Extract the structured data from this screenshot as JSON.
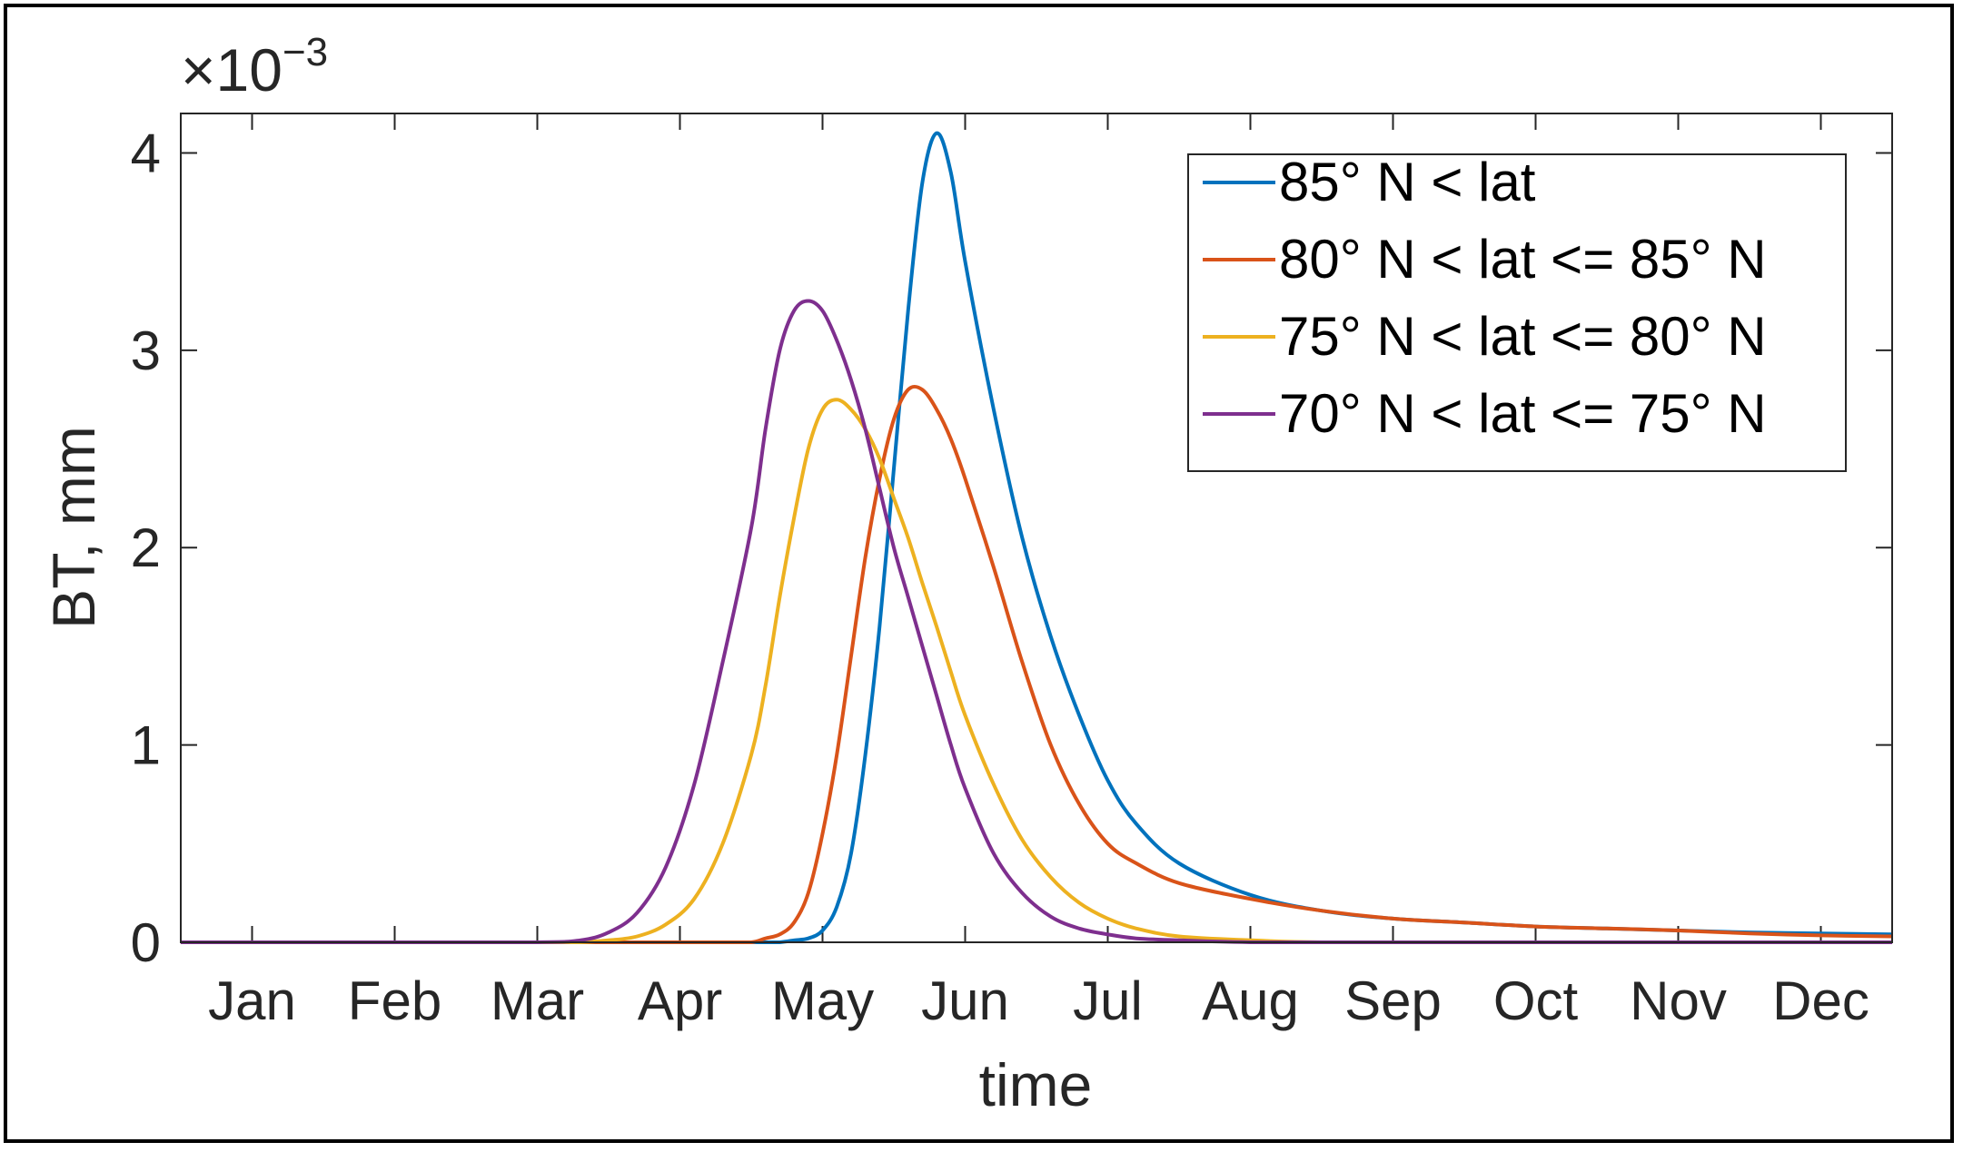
{
  "chart_data": {
    "type": "line",
    "title": "",
    "xlabel": "time",
    "ylabel": "BT, mm",
    "y_exponent_label": "×10",
    "y_exponent_power": "−3",
    "ylim": [
      0,
      4.2
    ],
    "xlim": [
      0.5,
      12.5
    ],
    "y_ticks": [
      "0",
      "1",
      "2",
      "3",
      "4"
    ],
    "y_tick_values": [
      0,
      1,
      2,
      3,
      4
    ],
    "categories": [
      "Jan",
      "Feb",
      "Mar",
      "Apr",
      "May",
      "Jun",
      "Jul",
      "Aug",
      "Sep",
      "Oct",
      "Nov",
      "Dec"
    ],
    "legend_position": "top-right",
    "x": [
      0.5,
      1,
      2,
      3,
      3.3,
      3.5,
      3.7,
      3.9,
      4.1,
      4.3,
      4.5,
      4.6,
      4.7,
      4.8,
      4.9,
      5.0,
      5.1,
      5.2,
      5.3,
      5.4,
      5.5,
      5.6,
      5.7,
      5.8,
      5.9,
      6.0,
      6.2,
      6.4,
      6.6,
      6.8,
      7.0,
      7.2,
      7.5,
      8.0,
      8.5,
      9.0,
      9.5,
      10.0,
      10.5,
      11.0,
      11.5,
      12.0,
      12.5
    ],
    "series": [
      {
        "name": "85° N < lat",
        "color": "#0072BD",
        "values": [
          0,
          0,
          0,
          0,
          0,
          0,
          0,
          0,
          0,
          0,
          0,
          0,
          0,
          0.01,
          0.02,
          0.06,
          0.18,
          0.45,
          0.95,
          1.6,
          2.4,
          3.2,
          3.85,
          4.1,
          3.9,
          3.45,
          2.7,
          2.05,
          1.55,
          1.15,
          0.82,
          0.6,
          0.4,
          0.24,
          0.16,
          0.12,
          0.1,
          0.08,
          0.07,
          0.06,
          0.05,
          0.045,
          0.04
        ]
      },
      {
        "name": "80° N < lat <= 85° N",
        "color": "#D95319",
        "values": [
          0,
          0,
          0,
          0,
          0,
          0,
          0,
          0,
          0,
          0,
          0,
          0.02,
          0.04,
          0.1,
          0.25,
          0.55,
          0.95,
          1.45,
          1.95,
          2.35,
          2.65,
          2.8,
          2.8,
          2.7,
          2.55,
          2.35,
          1.9,
          1.42,
          1.0,
          0.7,
          0.5,
          0.4,
          0.3,
          0.22,
          0.16,
          0.12,
          0.1,
          0.08,
          0.07,
          0.06,
          0.045,
          0.035,
          0.03
        ]
      },
      {
        "name": "75° N < lat <= 80° N",
        "color": "#EDB120",
        "values": [
          0,
          0,
          0,
          0,
          0,
          0.01,
          0.03,
          0.09,
          0.22,
          0.5,
          0.95,
          1.3,
          1.75,
          2.15,
          2.5,
          2.7,
          2.75,
          2.7,
          2.6,
          2.45,
          2.25,
          2.05,
          1.82,
          1.6,
          1.37,
          1.15,
          0.8,
          0.52,
          0.33,
          0.2,
          0.12,
          0.07,
          0.03,
          0.01,
          0,
          0,
          0,
          0,
          0,
          0,
          0,
          0,
          0
        ]
      },
      {
        "name": "70° N < lat <= 75° N",
        "color": "#7E2F8E",
        "values": [
          0,
          0,
          0,
          0,
          0.01,
          0.05,
          0.15,
          0.38,
          0.8,
          1.42,
          2.1,
          2.6,
          3.0,
          3.2,
          3.25,
          3.2,
          3.05,
          2.85,
          2.6,
          2.3,
          2.0,
          1.75,
          1.5,
          1.25,
          1.0,
          0.78,
          0.45,
          0.25,
          0.13,
          0.07,
          0.04,
          0.02,
          0.01,
          0,
          0,
          0,
          0,
          0,
          0,
          0,
          0,
          0,
          0
        ]
      }
    ]
  }
}
